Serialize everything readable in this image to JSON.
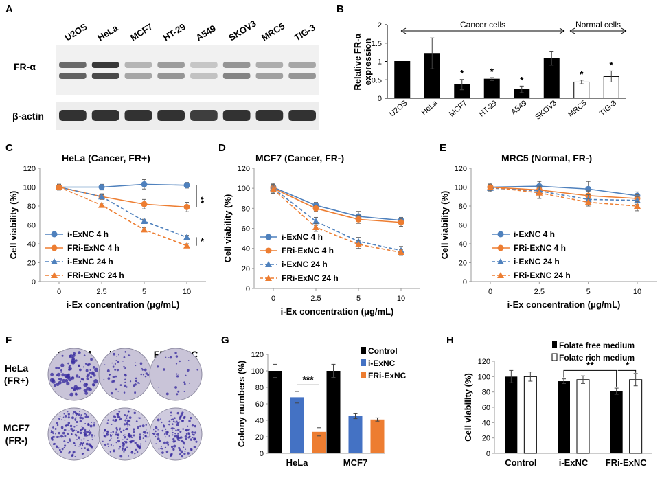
{
  "chart_data": [
    {
      "panel": "A",
      "type": "western-blot",
      "lanes": [
        "U2OS",
        "HeLa",
        "MCF7",
        "HT-29",
        "A549",
        "SKOV3",
        "MRC5",
        "TIG-3"
      ],
      "rows": [
        "FR-α",
        "β-actin"
      ]
    },
    {
      "panel": "B",
      "type": "bar",
      "title": "",
      "ylabel": "Relative FR-α expression",
      "ylim": [
        0,
        2
      ],
      "yticks": [
        "0",
        "0.5",
        "1",
        "1.5",
        "2"
      ],
      "categories": [
        "U2OS",
        "HeLa",
        "MCF7",
        "HT-29",
        "A549",
        "SKOV3",
        "MRC5",
        "TIG-3"
      ],
      "values": [
        1.0,
        1.22,
        0.37,
        0.52,
        0.24,
        1.09,
        0.44,
        0.59
      ],
      "errors": [
        0,
        0.42,
        0.14,
        0.04,
        0.09,
        0.19,
        0.05,
        0.15
      ],
      "groups": [
        {
          "label": "Cancer cells",
          "color": "#000000"
        },
        {
          "label": "Normal cells",
          "color": "#ffffff"
        }
      ],
      "significance": [
        "",
        "",
        "*",
        "*",
        "*",
        "",
        "*",
        "*"
      ]
    },
    {
      "panel": "C",
      "type": "line",
      "title": "HeLa (Cancer, FR+)",
      "xlabel": "i-Ex concentration (μg/mL)",
      "ylabel": "Cell viability (%)",
      "x": [
        "0",
        "2.5",
        "5",
        "10"
      ],
      "ylim": [
        0,
        120
      ],
      "yticks": [
        "0",
        "20",
        "40",
        "60",
        "80",
        "100",
        "120"
      ],
      "series": [
        {
          "name": "i-ExNC 4 h",
          "values": [
            100,
            100,
            103,
            102
          ],
          "errors": [
            3,
            3,
            5,
            3
          ]
        },
        {
          "name": "FRi-ExNC 4 h",
          "values": [
            100,
            90,
            82,
            79
          ],
          "errors": [
            3,
            3,
            5,
            5
          ]
        },
        {
          "name": "i-ExNC 24 h",
          "values": [
            100,
            90,
            64,
            47
          ],
          "errors": [
            3,
            2,
            2,
            2
          ]
        },
        {
          "name": "FRi-ExNC 24 h",
          "values": [
            100,
            81,
            55,
            38
          ],
          "errors": [
            3,
            2,
            2,
            2
          ]
        }
      ],
      "significance": [
        "**",
        "*"
      ]
    },
    {
      "panel": "D",
      "type": "line",
      "title": "MCF7 (Cancer, FR-)",
      "xlabel": "i-Ex concentration (μg/mL)",
      "ylabel": "Cell viability (%)",
      "x": [
        "0",
        "2.5",
        "5",
        "10"
      ],
      "ylim": [
        0,
        120
      ],
      "yticks": [
        "0",
        "20",
        "40",
        "60",
        "80",
        "100",
        "120"
      ],
      "series": [
        {
          "name": "i-ExNC 4 h",
          "values": [
            101,
            83,
            72,
            68
          ],
          "errors": [
            4,
            3,
            5,
            3
          ]
        },
        {
          "name": "FRi-ExNC 4 h",
          "values": [
            100,
            80,
            69,
            66
          ],
          "errors": [
            4,
            3,
            4,
            4
          ]
        },
        {
          "name": "i-ExNC 24 h",
          "values": [
            100,
            67,
            47,
            38
          ],
          "errors": [
            4,
            4,
            4,
            4
          ]
        },
        {
          "name": "FRi-ExNC 24 h",
          "values": [
            99,
            61,
            44,
            36
          ],
          "errors": [
            4,
            4,
            4,
            3
          ]
        }
      ]
    },
    {
      "panel": "E",
      "type": "line",
      "title": "MRC5 (Normal, FR-)",
      "xlabel": "i-Ex concentration (μg/mL)",
      "ylabel": "Cell viability (%)",
      "x": [
        "0",
        "2.5",
        "5",
        "10"
      ],
      "ylim": [
        0,
        120
      ],
      "yticks": [
        "0",
        "20",
        "40",
        "60",
        "80",
        "100",
        "120"
      ],
      "series": [
        {
          "name": "i-ExNC 4 h",
          "values": [
            100,
            101,
            98,
            91
          ],
          "errors": [
            4,
            5,
            8,
            4
          ]
        },
        {
          "name": "FRi-ExNC 4 h",
          "values": [
            100,
            97,
            91,
            88
          ],
          "errors": [
            4,
            4,
            5,
            4
          ]
        },
        {
          "name": "i-ExNC 24 h",
          "values": [
            99,
            96,
            87,
            86
          ],
          "errors": [
            4,
            4,
            5,
            4
          ]
        },
        {
          "name": "FRi-ExNC 24 h",
          "values": [
            100,
            94,
            84,
            80
          ],
          "errors": [
            4,
            6,
            4,
            5
          ]
        }
      ]
    },
    {
      "panel": "F",
      "type": "image-grid",
      "columns": [
        "Control",
        "i-ExNC",
        "FRi-ExNC"
      ],
      "rows": [
        {
          "name": "HeLa",
          "note": "(FR+)"
        },
        {
          "name": "MCF7",
          "note": "(FR-)"
        }
      ]
    },
    {
      "panel": "G",
      "type": "bar",
      "ylabel": "Colony numbers (%)",
      "ylim": [
        0,
        120
      ],
      "yticks": [
        "0",
        "20",
        "40",
        "60",
        "80",
        "100",
        "120"
      ],
      "categories": [
        "HeLa",
        "MCF7"
      ],
      "series": [
        {
          "name": "Control",
          "values": [
            100,
            100
          ],
          "errors": [
            8,
            8
          ]
        },
        {
          "name": "i-ExNC",
          "values": [
            68,
            45
          ],
          "errors": [
            7,
            3
          ]
        },
        {
          "name": "FRi-ExNC",
          "values": [
            26,
            41
          ],
          "errors": [
            5,
            2
          ]
        }
      ],
      "significance": [
        "***"
      ]
    },
    {
      "panel": "H",
      "type": "bar",
      "ylabel": "Cell viability (%)",
      "ylim": [
        0,
        120
      ],
      "yticks": [
        "0",
        "20",
        "40",
        "60",
        "80",
        "100",
        "120"
      ],
      "categories": [
        "Control",
        "i-ExNC",
        "FRi-ExNC"
      ],
      "series": [
        {
          "name": "Folate free medium",
          "values": [
            100,
            94,
            81
          ],
          "errors": [
            8,
            3,
            4
          ]
        },
        {
          "name": "Folate rich medium",
          "values": [
            100,
            96,
            96
          ],
          "errors": [
            6,
            5,
            8
          ]
        }
      ],
      "significance": [
        "**",
        "*"
      ]
    }
  ],
  "colors": {
    "blue": "#4f81bd",
    "orange": "#ed7d31",
    "g_blue": "#4472c4",
    "black": "#000000"
  }
}
